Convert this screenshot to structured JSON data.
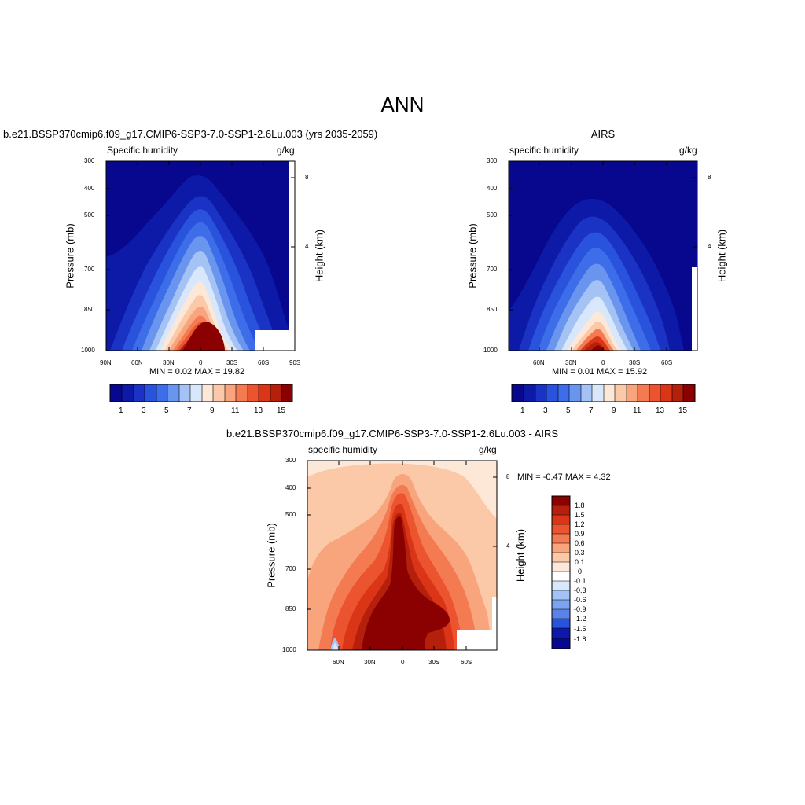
{
  "page": {
    "main_title": "ANN"
  },
  "colors": {
    "seq_colorbar": [
      "#08088f",
      "#0d1aa8",
      "#1a33c4",
      "#2952dd",
      "#3d6de8",
      "#6a95ee",
      "#a4c2f4",
      "#d8e7fb",
      "#fde8d7",
      "#fbc8a8",
      "#f8a47c",
      "#f47a52",
      "#ec532f",
      "#d93516",
      "#b5200c",
      "#8b0000"
    ],
    "diff_colorbar": [
      "#8b0000",
      "#b5200c",
      "#d93516",
      "#ec532f",
      "#f47a52",
      "#f8a47c",
      "#fbc8a8",
      "#fde8d7",
      "#ffffff",
      "#d8e7fb",
      "#a4c2f4",
      "#7ba3ef",
      "#5a83ea",
      "#3d6de8",
      "#2952dd",
      "#1a33c4",
      "#0d1aa8",
      "#08088f"
    ]
  },
  "panels": {
    "test": {
      "title": "b.e21.BSSP370cmip6.f09_g17.CMIP6-SSP3-7.0-SSP1-2.6Lu.003 (yrs 2035-2059)",
      "left_label": "Specific humidity",
      "right_label": "g/kg",
      "ylabel": "Pressure (mb)",
      "y2label": "Height (km)",
      "y_ticks": [
        "300",
        "400",
        "500",
        "700",
        "850",
        "1000"
      ],
      "y2_ticks": [
        "8",
        "4"
      ],
      "x_ticks": [
        "90N",
        "60N",
        "30N",
        "0",
        "30S",
        "60S",
        "90S"
      ],
      "stats": "MIN =   0.02  MAX =  19.82",
      "colorbar_labels": [
        "1",
        "3",
        "5",
        "7",
        "9",
        "11",
        "13",
        "15"
      ]
    },
    "ref": {
      "title": "AIRS",
      "left_label": "specific humidity",
      "right_label": "g/kg",
      "ylabel": "Pressure (mb)",
      "y2label": "Height (km)",
      "y_ticks": [
        "300",
        "400",
        "500",
        "700",
        "850",
        "1000"
      ],
      "y2_ticks": [
        "8",
        "4"
      ],
      "x_ticks": [
        "60N",
        "30N",
        "0",
        "30S",
        "60S"
      ],
      "stats": "MIN =   0.01  MAX =  15.92",
      "colorbar_labels": [
        "1",
        "3",
        "5",
        "7",
        "9",
        "11",
        "13",
        "15"
      ]
    },
    "diff": {
      "title": "b.e21.BSSP370cmip6.f09_g17.CMIP6-SSP3-7.0-SSP1-2.6Lu.003 - AIRS",
      "left_label": "specific humidity",
      "right_label": "g/kg",
      "ylabel": "Pressure (mb)",
      "y2label": "Height (km)",
      "y_ticks": [
        "300",
        "400",
        "500",
        "700",
        "850",
        "1000"
      ],
      "y2_ticks": [
        "8",
        "4"
      ],
      "x_ticks": [
        "60N",
        "30N",
        "0",
        "30S",
        "60S"
      ],
      "stats": "MIN =  -0.47  MAX =   4.32",
      "colorbar_labels": [
        "1.8",
        "1.5",
        "1.2",
        "0.9",
        "0.6",
        "0.3",
        "0.1",
        "0",
        "-0.1",
        "-0.3",
        "-0.6",
        "-0.9",
        "-1.2",
        "-1.5",
        "-1.8"
      ]
    }
  },
  "chart_data": [
    {
      "type": "heatmap",
      "title": "b.e21.BSSP370cmip6.f09_g17.CMIP6-SSP3-7.0-SSP1-2.6Lu.003 (yrs 2035-2059)",
      "xlabel": "",
      "ylabel": "Pressure (mb)",
      "y2label": "Height (km)",
      "xlim": [
        90,
        -90
      ],
      "ylim": [
        1000,
        300
      ],
      "x_ticks": [
        "90N",
        "60N",
        "30N",
        "0",
        "30S",
        "60S",
        "90S"
      ],
      "y_ticks": [
        300,
        400,
        500,
        700,
        850,
        1000
      ],
      "y_scale": "log",
      "min": 0.02,
      "max": 19.82,
      "contour_levels": [
        1,
        2,
        3,
        4,
        5,
        6,
        7,
        8,
        9,
        10,
        11,
        12,
        13,
        14,
        15
      ]
    },
    {
      "type": "heatmap",
      "title": "AIRS",
      "ylabel": "Pressure (mb)",
      "y2label": "Height (km)",
      "x_ticks": [
        "60N",
        "30N",
        "0",
        "30S",
        "60S"
      ],
      "y_ticks": [
        300,
        400,
        500,
        700,
        850,
        1000
      ],
      "y_scale": "log",
      "min": 0.01,
      "max": 15.92,
      "contour_levels": [
        1,
        2,
        3,
        4,
        5,
        6,
        7,
        8,
        9,
        10,
        11,
        12,
        13,
        14,
        15
      ]
    },
    {
      "type": "heatmap",
      "title": "b.e21.BSSP370cmip6.f09_g17.CMIP6-SSP3-7.0-SSP1-2.6Lu.003 - AIRS",
      "ylabel": "Pressure (mb)",
      "y2label": "Height (km)",
      "x_ticks": [
        "60N",
        "30N",
        "0",
        "30S",
        "60S"
      ],
      "y_ticks": [
        300,
        400,
        500,
        700,
        850,
        1000
      ],
      "y_scale": "log",
      "min": -0.47,
      "max": 4.32,
      "contour_levels": [
        -1.8,
        -1.5,
        -1.2,
        -0.9,
        -0.6,
        -0.3,
        -0.1,
        0,
        0.1,
        0.3,
        0.6,
        0.9,
        1.2,
        1.5,
        1.8
      ]
    }
  ]
}
